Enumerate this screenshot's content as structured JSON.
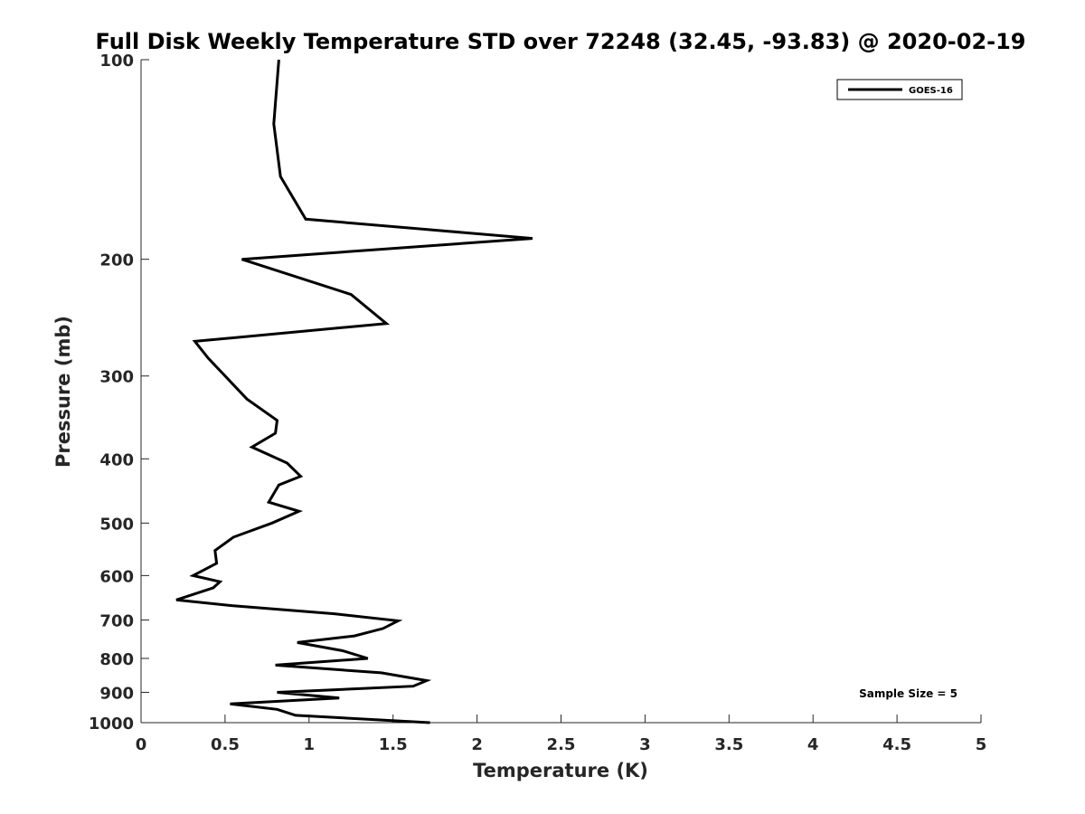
{
  "chart_data": {
    "type": "line",
    "title": "Full Disk Weekly Temperature STD over 72248 (32.45, -93.83) @ 2020-02-19",
    "xlabel": "Temperature (K)",
    "ylabel": "Pressure (mb)",
    "xlim": [
      0,
      5
    ],
    "ylim": [
      100,
      1000
    ],
    "y_scale": "log",
    "y_reversed": true,
    "x_ticks": [
      "0",
      "0.5",
      "1",
      "1.5",
      "2",
      "2.5",
      "3",
      "3.5",
      "4",
      "4.5",
      "5"
    ],
    "x_tick_values": [
      0,
      0.5,
      1,
      1.5,
      2,
      2.5,
      3,
      3.5,
      4,
      4.5,
      5
    ],
    "y_ticks": [
      "100",
      "200",
      "300",
      "400",
      "500",
      "600",
      "700",
      "800",
      "900",
      "1000"
    ],
    "y_tick_values": [
      100,
      200,
      300,
      400,
      500,
      600,
      700,
      800,
      900,
      1000
    ],
    "grid": false,
    "legend_position": "top-right",
    "series": [
      {
        "name": "GOES-16",
        "color": "#000000",
        "points": [
          [
            0.82,
            100
          ],
          [
            0.79,
            125
          ],
          [
            0.83,
            150
          ],
          [
            0.98,
            174
          ],
          [
            2.33,
            186
          ],
          [
            0.6,
            200
          ],
          [
            1.25,
            226
          ],
          [
            1.46,
            250
          ],
          [
            0.32,
            266
          ],
          [
            0.4,
            282
          ],
          [
            0.63,
            325
          ],
          [
            0.81,
            350
          ],
          [
            0.8,
            366
          ],
          [
            0.66,
            384
          ],
          [
            0.87,
            406
          ],
          [
            0.95,
            425
          ],
          [
            0.82,
            438
          ],
          [
            0.76,
            465
          ],
          [
            0.94,
            480
          ],
          [
            0.78,
            500
          ],
          [
            0.55,
            525
          ],
          [
            0.44,
            550
          ],
          [
            0.45,
            575
          ],
          [
            0.31,
            600
          ],
          [
            0.47,
            613
          ],
          [
            0.43,
            626
          ],
          [
            0.21,
            653
          ],
          [
            0.54,
            666
          ],
          [
            1.15,
            685
          ],
          [
            1.53,
            702
          ],
          [
            1.44,
            721
          ],
          [
            1.27,
            740
          ],
          [
            0.93,
            757
          ],
          [
            1.2,
            779
          ],
          [
            1.35,
            800
          ],
          [
            0.8,
            819
          ],
          [
            1.43,
            841
          ],
          [
            1.7,
            864
          ],
          [
            1.62,
            881
          ],
          [
            0.81,
            900
          ],
          [
            1.18,
            918
          ],
          [
            0.53,
            937
          ],
          [
            0.81,
            955
          ],
          [
            0.92,
            975
          ],
          [
            1.72,
            1000
          ]
        ]
      }
    ],
    "annotations": [
      "Sample Size = 5"
    ]
  }
}
